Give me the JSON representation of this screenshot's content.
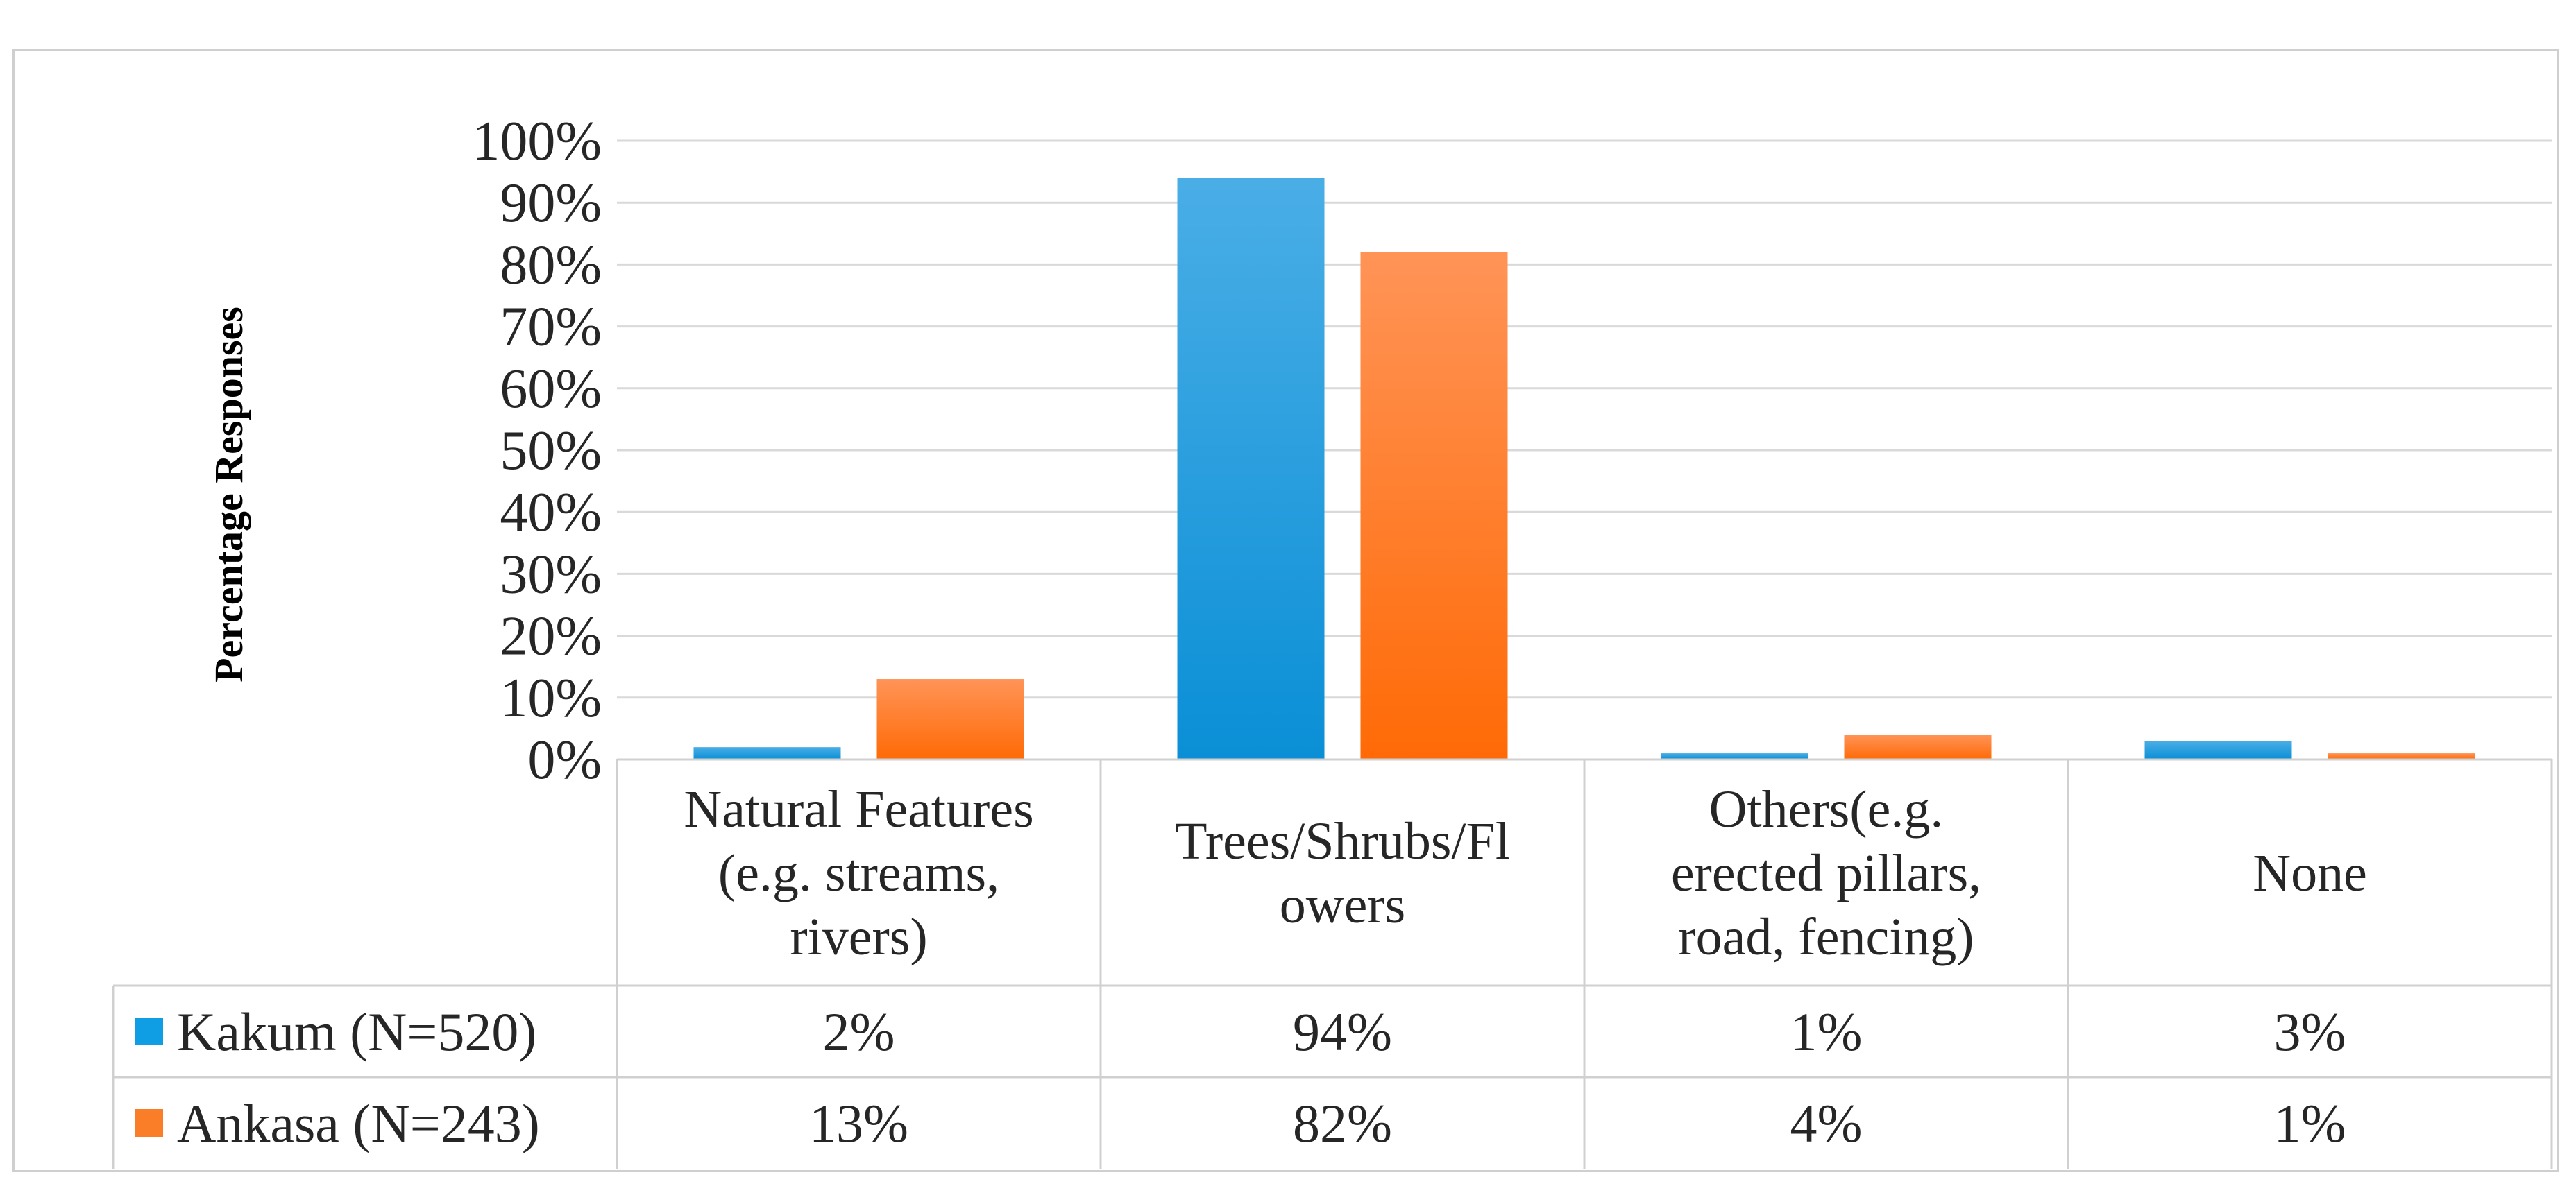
{
  "chart_data": {
    "type": "bar",
    "ylabel": "Percentage Responses",
    "xlabel": "",
    "title": "",
    "ylim": [
      0,
      100
    ],
    "y_ticks": [
      0,
      10,
      20,
      30,
      40,
      50,
      60,
      70,
      80,
      90,
      100
    ],
    "y_tick_labels": [
      "0%",
      "10%",
      "20%",
      "30%",
      "40%",
      "50%",
      "60%",
      "70%",
      "80%",
      "90%",
      "100%"
    ],
    "grid": "horizontal",
    "legend_placement": "data-table",
    "categories": [
      [
        "Natural Features",
        "(e.g. streams,",
        "rivers)"
      ],
      [
        "Trees/Shrubs/Fl",
        "owers"
      ],
      [
        "Others(e.g.",
        "erected pillars,",
        "road, fencing)"
      ],
      [
        "None"
      ]
    ],
    "series": [
      {
        "name": "Kakum (N=520)",
        "color": "#0f9ee3",
        "values": [
          2,
          94,
          1,
          3
        ],
        "value_labels": [
          "2%",
          "94%",
          "1%",
          "3%"
        ]
      },
      {
        "name": "Ankasa (N=243)",
        "color": "#fa7d28",
        "values": [
          13,
          82,
          4,
          1
        ],
        "value_labels": [
          "13%",
          "82%",
          "4%",
          "1%"
        ]
      }
    ]
  }
}
